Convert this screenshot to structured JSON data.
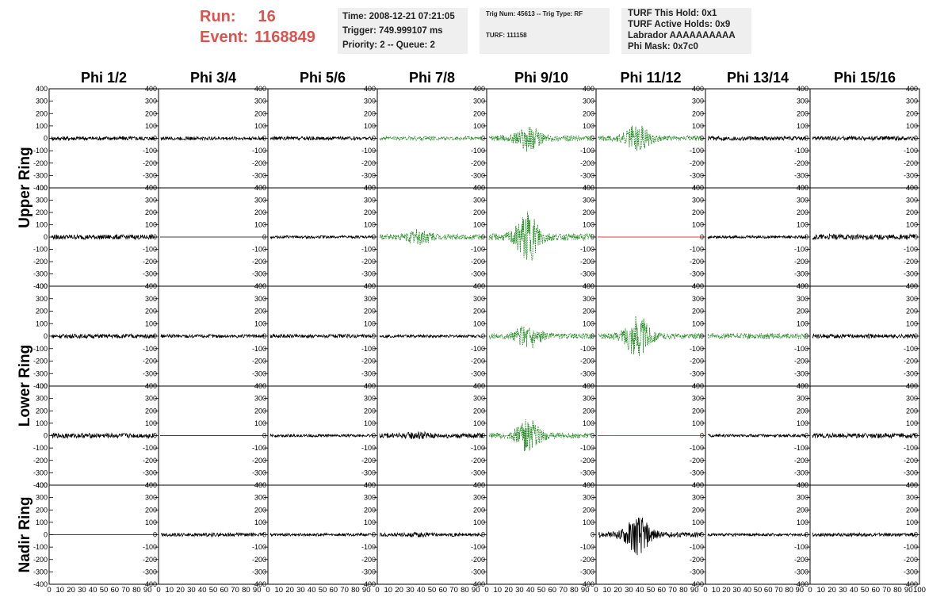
{
  "header": {
    "run_label": "Run:",
    "run_value": "16",
    "event_label": "Event:",
    "event_value": "1168849"
  },
  "time_box": {
    "time": "Time: 2008-12-21 07:21:05",
    "trigger": "Trigger: 749.999107 ms",
    "priority": "Priority: 2 -- Queue: 2"
  },
  "trig_box": {
    "trig": "Trig Num: 45613 -- Trig Type: RF",
    "turf": "TURF: 111158"
  },
  "turf_box": {
    "hold": "TURF This Hold: 0x1",
    "active": "TURF Active Holds: 0x9",
    "labrador": "Labrador AAAAAAAAAA",
    "phimask": "Phi Mask: 0x7c0"
  },
  "chart_data": {
    "type": "line",
    "columns": [
      "Phi 1/2",
      "Phi 3/4",
      "Phi 5/6",
      "Phi 7/8",
      "Phi 9/10",
      "Phi 11/12",
      "Phi 13/14",
      "Phi 15/16"
    ],
    "ring_labels": [
      "Upper Ring",
      "Lower Ring",
      "Nadir Ring"
    ],
    "ylim": [
      -400,
      400
    ],
    "yticks": [
      400,
      300,
      200,
      100,
      0,
      -100,
      -200,
      -300,
      -400
    ],
    "xlim": [
      0,
      100
    ],
    "xtick_labels": [
      "0",
      "10",
      "20",
      "30",
      "40",
      "50",
      "60",
      "70",
      "80",
      "90",
      "0",
      "10",
      "20",
      "30",
      "40",
      "50",
      "60",
      "70",
      "80",
      "90",
      "0",
      "10",
      "20",
      "30",
      "40",
      "50",
      "60",
      "70",
      "80",
      "90",
      "0",
      "10",
      "20",
      "30",
      "40",
      "50",
      "60",
      "70",
      "80",
      "90",
      "0",
      "10",
      "20",
      "30",
      "40",
      "50",
      "60",
      "70",
      "80",
      "90",
      "0",
      "10",
      "20",
      "30",
      "40",
      "50",
      "60",
      "70",
      "80",
      "90",
      "0",
      "10",
      "20",
      "30",
      "40",
      "50",
      "60",
      "70",
      "80",
      "90",
      "0",
      "10",
      "20",
      "30",
      "40",
      "50",
      "60",
      "70",
      "80",
      "90",
      "100"
    ],
    "colors": {
      "normal": "#000000",
      "triggered": "#228b22",
      "dead": "#cc0000"
    },
    "panels": [
      [
        {
          "style": "normal",
          "amp": 30,
          "pulse": 0
        },
        {
          "style": "normal",
          "amp": 25,
          "pulse": 0
        },
        {
          "style": "normal",
          "amp": 25,
          "pulse": 0
        },
        {
          "style": "triggered",
          "amp": 25,
          "pulse": 40
        },
        {
          "style": "triggered",
          "amp": 40,
          "pulse": 200
        },
        {
          "style": "triggered",
          "amp": 40,
          "pulse": 220
        },
        {
          "style": "normal",
          "amp": 30,
          "pulse": 0
        },
        {
          "style": "normal",
          "amp": 30,
          "pulse": 0
        }
      ],
      [
        {
          "style": "normal",
          "amp": 35,
          "pulse": 0
        },
        {
          "style": "flat",
          "amp": 0,
          "pulse": 0
        },
        {
          "style": "normal",
          "amp": 20,
          "pulse": 0
        },
        {
          "style": "triggered",
          "amp": 40,
          "pulse": 130
        },
        {
          "style": "triggered",
          "amp": 50,
          "pulse": 380
        },
        {
          "style": "dead",
          "amp": 0,
          "pulse": 0
        },
        {
          "style": "normal",
          "amp": 20,
          "pulse": 0
        },
        {
          "style": "normal",
          "amp": 40,
          "pulse": 0
        }
      ],
      [
        {
          "style": "normal",
          "amp": 30,
          "pulse": 0
        },
        {
          "style": "normal",
          "amp": 25,
          "pulse": 0
        },
        {
          "style": "normal",
          "amp": 25,
          "pulse": 0
        },
        {
          "style": "normal",
          "amp": 20,
          "pulse": 0
        },
        {
          "style": "triggered",
          "amp": 40,
          "pulse": 200
        },
        {
          "style": "triggered",
          "amp": 40,
          "pulse": 320
        },
        {
          "style": "triggered",
          "amp": 40,
          "pulse": 0
        },
        {
          "style": "normal",
          "amp": 30,
          "pulse": 0
        }
      ],
      [
        {
          "style": "normal",
          "amp": 35,
          "pulse": 0
        },
        {
          "style": "flat",
          "amp": 0,
          "pulse": 0
        },
        {
          "style": "normal",
          "amp": 20,
          "pulse": 0
        },
        {
          "style": "normal",
          "amp": 35,
          "pulse": 60
        },
        {
          "style": "triggered",
          "amp": 40,
          "pulse": 250
        },
        {
          "style": "dead",
          "amp": 0,
          "pulse": 0
        },
        {
          "style": "normal",
          "amp": 20,
          "pulse": 0
        },
        {
          "style": "normal",
          "amp": 35,
          "pulse": 0
        }
      ],
      [
        {
          "style": "flat",
          "amp": 0,
          "pulse": 0
        },
        {
          "style": "normal",
          "amp": 25,
          "pulse": 0
        },
        {
          "style": "normal",
          "amp": 20,
          "pulse": 0
        },
        {
          "style": "normal",
          "amp": 25,
          "pulse": 40
        },
        {
          "style": "empty",
          "amp": 0,
          "pulse": 0
        },
        {
          "style": "normal",
          "amp": 40,
          "pulse": 300
        },
        {
          "style": "normal",
          "amp": 20,
          "pulse": 0
        },
        {
          "style": "normal",
          "amp": 25,
          "pulse": 0
        }
      ]
    ]
  }
}
